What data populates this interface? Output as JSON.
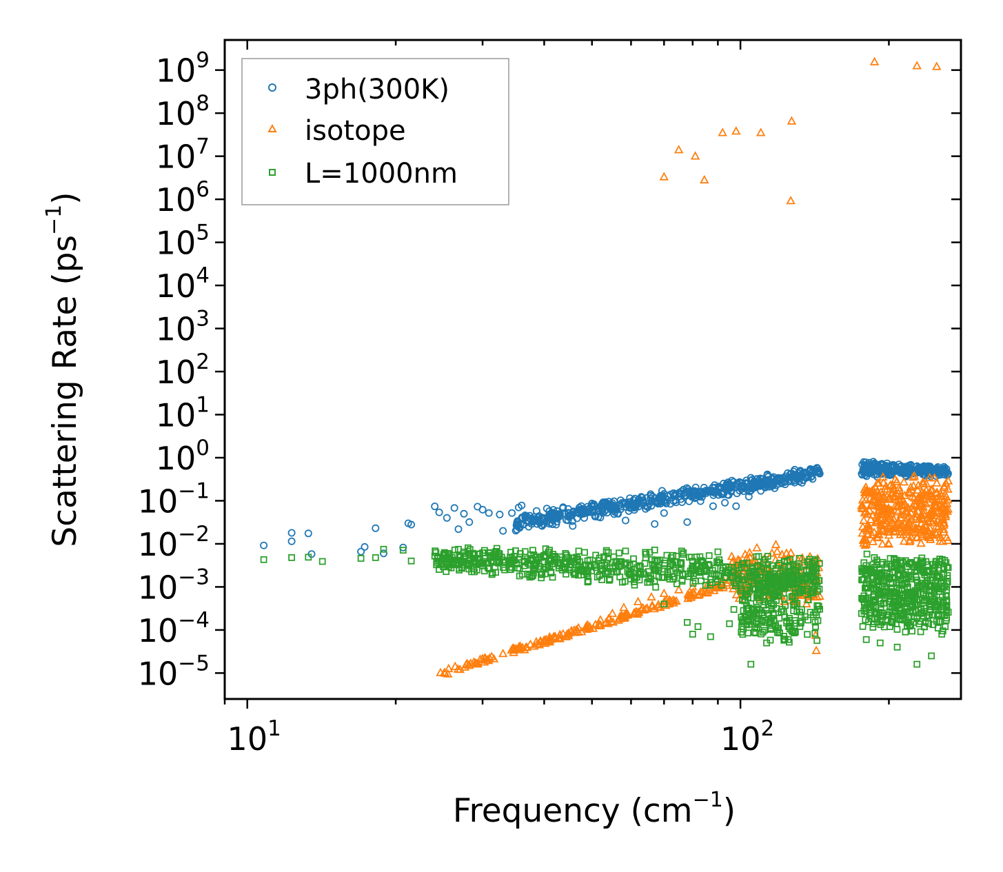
{
  "chart_data": {
    "type": "scatter",
    "xscale": "log",
    "yscale": "log",
    "xlabel": "Frequency (cm",
    "xlabel_sup": "−1",
    "xlabel_end": ")",
    "ylabel": "Scattering Rate (ps",
    "ylabel_sup": "−1",
    "ylabel_end": ")",
    "xlim": [
      9.0,
      280
    ],
    "ylim": [
      2.5e-06,
      5000000000
    ],
    "xticks": [
      {
        "base": "10",
        "exp": "1",
        "value": 10
      },
      {
        "base": "10",
        "exp": "2",
        "value": 100
      }
    ],
    "yticks": [
      {
        "base": "10",
        "exp": "9",
        "value": 1000000000.0
      },
      {
        "base": "10",
        "exp": "8",
        "value": 100000000.0
      },
      {
        "base": "10",
        "exp": "7",
        "value": 10000000.0
      },
      {
        "base": "10",
        "exp": "6",
        "value": 1000000.0
      },
      {
        "base": "10",
        "exp": "5",
        "value": 100000.0
      },
      {
        "base": "10",
        "exp": "4",
        "value": 10000.0
      },
      {
        "base": "10",
        "exp": "3",
        "value": 1000.0
      },
      {
        "base": "10",
        "exp": "2",
        "value": 100.0
      },
      {
        "base": "10",
        "exp": "1",
        "value": 10.0
      },
      {
        "base": "10",
        "exp": "0",
        "value": 1
      },
      {
        "base": "10",
        "exp": "−1",
        "value": 0.1
      },
      {
        "base": "10",
        "exp": "−2",
        "value": 0.01
      },
      {
        "base": "10",
        "exp": "−3",
        "value": 0.001
      },
      {
        "base": "10",
        "exp": "−4",
        "value": 0.0001
      },
      {
        "base": "10",
        "exp": "−5",
        "value": 1e-05
      }
    ],
    "legend_position": "top-left",
    "series": [
      {
        "name": "3ph(300K)",
        "marker": "circle",
        "color": "#1f77b4",
        "points": [
          [
            10.8,
            0.0092
          ],
          [
            12.3,
            0.0115
          ],
          [
            12.3,
            0.018
          ],
          [
            13.3,
            0.0175
          ],
          [
            13.5,
            0.0058
          ],
          [
            17.0,
            0.0066
          ],
          [
            17.3,
            0.0085
          ],
          [
            18.2,
            0.023
          ],
          [
            18.9,
            0.006
          ],
          [
            20.7,
            0.0082
          ],
          [
            21.2,
            0.03
          ],
          [
            21.5,
            0.028
          ],
          [
            24.0,
            0.074
          ],
          [
            24.5,
            0.054
          ],
          [
            25.4,
            0.04
          ],
          [
            26.3,
            0.068
          ],
          [
            26.8,
            0.022
          ],
          [
            27.5,
            0.05
          ],
          [
            28.2,
            0.032
          ],
          [
            29.3,
            0.073
          ],
          [
            30.0,
            0.062
          ],
          [
            30.9,
            0.052
          ],
          [
            32.5,
            0.048
          ],
          [
            33.0,
            0.02
          ],
          [
            34.4,
            0.052
          ],
          [
            35.5,
            0.07
          ],
          [
            36.0,
            0.078
          ],
          [
            36.6,
            0.046
          ],
          [
            37.2,
            0.025
          ],
          [
            38.6,
            0.058
          ],
          [
            39.0,
            0.032
          ],
          [
            40.5,
            0.066
          ],
          [
            41.6,
            0.048
          ],
          [
            42.3,
            0.028
          ],
          [
            43.7,
            0.071
          ],
          [
            44.8,
            0.043
          ],
          [
            45.7,
            0.026
          ],
          [
            47.5,
            0.062
          ],
          [
            49.0,
            0.073
          ],
          [
            50.5,
            0.055
          ],
          [
            52.0,
            0.041
          ],
          [
            54.5,
            0.063
          ],
          [
            56.5,
            0.05
          ],
          [
            58.5,
            0.035
          ],
          [
            61.0,
            0.074
          ],
          [
            64.0,
            0.077
          ],
          [
            67.0,
            0.029
          ],
          [
            70.0,
            0.052
          ],
          [
            74.0,
            0.092
          ],
          [
            78.0,
            0.032
          ],
          [
            83.0,
            0.098
          ],
          [
            88.0,
            0.075
          ],
          [
            93.0,
            0.09
          ],
          [
            98.0,
            0.075
          ],
          [
            104.0,
            0.125
          ],
          [
            110.0,
            0.17
          ],
          [
            116.0,
            0.26
          ],
          [
            122.0,
            0.34
          ],
          [
            128.0,
            0.38
          ],
          [
            135.0,
            0.44
          ],
          [
            142.0,
            0.52
          ],
          [
            178.0,
            0.52
          ],
          [
            182.0,
            0.68
          ],
          [
            187.0,
            0.74
          ],
          [
            192.0,
            0.7
          ],
          [
            198.0,
            0.6
          ],
          [
            205.0,
            0.48
          ],
          [
            212.0,
            0.5
          ],
          [
            220.0,
            0.44
          ],
          [
            228.0,
            0.45
          ],
          [
            236.0,
            0.52
          ],
          [
            244.0,
            0.54
          ],
          [
            252.0,
            0.5
          ],
          [
            260.0,
            0.46
          ]
        ]
      },
      {
        "name": "isotope",
        "marker": "triangle",
        "color": "#ff7f0e",
        "points": [
          [
            70.0,
            3300000
          ],
          [
            75.0,
            14000000
          ],
          [
            81.0,
            10000000
          ],
          [
            84.5,
            2800000
          ],
          [
            92.0,
            35000000
          ],
          [
            98.0,
            38000000
          ],
          [
            110.0,
            35000000
          ],
          [
            127.0,
            65000000
          ],
          [
            126.5,
            920000
          ],
          [
            187.0,
            1550000000
          ],
          [
            228.0,
            1250000000
          ],
          [
            250.0,
            1200000000
          ],
          [
            25.5,
            9.5e-06
          ],
          [
            27.0,
            1.2e-05
          ],
          [
            29.0,
            1.7e-05
          ],
          [
            31.0,
            2.2e-05
          ],
          [
            33.0,
            2.8e-05
          ],
          [
            35.0,
            3.6e-05
          ],
          [
            37.5,
            4.6e-05
          ],
          [
            40.0,
            5.8e-05
          ],
          [
            43.0,
            7.5e-05
          ],
          [
            46.0,
            9.8e-05
          ],
          [
            49.0,
            0.00013
          ],
          [
            52.0,
            0.00017
          ],
          [
            55.0,
            0.00024
          ],
          [
            58.0,
            0.00033
          ],
          [
            62.0,
            0.00045
          ],
          [
            66.0,
            0.00058
          ],
          [
            70.0,
            0.0007
          ],
          [
            75.0,
            0.00085
          ],
          [
            80.0,
            0.001
          ],
          [
            86.0,
            0.0012
          ],
          [
            92.0,
            0.0015
          ],
          [
            98.0,
            0.0022
          ],
          [
            104.0,
            0.0035
          ],
          [
            108.0,
            0.008
          ],
          [
            112.0,
            0.0045
          ],
          [
            118.0,
            0.0095
          ],
          [
            124.0,
            0.006
          ],
          [
            130.0,
            0.0028
          ],
          [
            136.0,
            0.0011
          ],
          [
            143.0,
            0.00058
          ],
          [
            142.0,
            7.5e-05
          ],
          [
            142.5,
            3.3e-05
          ],
          [
            180.0,
            0.0098
          ],
          [
            184.0,
            0.15
          ],
          [
            190.0,
            0.09
          ],
          [
            196.0,
            0.12
          ],
          [
            200.0,
            0.023
          ],
          [
            206.0,
            0.31
          ],
          [
            212.0,
            0.11
          ],
          [
            218.0,
            0.04
          ],
          [
            224.0,
            0.35
          ],
          [
            230.0,
            0.12
          ],
          [
            236.0,
            0.021
          ],
          [
            242.0,
            0.34
          ],
          [
            248.0,
            0.08
          ],
          [
            254.0,
            0.03
          ],
          [
            262.0,
            0.014
          ]
        ]
      },
      {
        "name": "L=1000nm",
        "marker": "square",
        "color": "#2ca02c",
        "points": [
          [
            10.8,
            0.0043
          ],
          [
            12.3,
            0.0048
          ],
          [
            13.3,
            0.0049
          ],
          [
            14.2,
            0.0039
          ],
          [
            17.0,
            0.0046
          ],
          [
            18.2,
            0.0048
          ],
          [
            18.9,
            0.0075
          ],
          [
            20.7,
            0.0071
          ],
          [
            21.5,
            0.004
          ],
          [
            24.0,
            0.0052
          ],
          [
            25.4,
            0.0045
          ],
          [
            26.8,
            0.0075
          ],
          [
            28.2,
            0.004
          ],
          [
            30.0,
            0.0062
          ],
          [
            31.5,
            0.0037
          ],
          [
            33.0,
            0.0042
          ],
          [
            35.0,
            0.0069
          ],
          [
            37.0,
            0.0045
          ],
          [
            39.0,
            0.0035
          ],
          [
            41.0,
            0.0071
          ],
          [
            43.0,
            0.0042
          ],
          [
            45.0,
            0.0025
          ],
          [
            47.0,
            0.0068
          ],
          [
            49.0,
            0.0013
          ],
          [
            51.0,
            0.0028
          ],
          [
            53.5,
            0.007
          ],
          [
            56.0,
            0.0022
          ],
          [
            58.5,
            0.0068
          ],
          [
            61.0,
            0.0011
          ],
          [
            64.0,
            0.0035
          ],
          [
            67.0,
            0.0072
          ],
          [
            70.0,
            0.0004
          ],
          [
            73.0,
            0.0015
          ],
          [
            76.0,
            0.0068
          ],
          [
            78.0,
            0.00015
          ],
          [
            80.0,
            8e-05
          ],
          [
            82.0,
            0.00012
          ],
          [
            84.0,
            0.0038
          ],
          [
            87.0,
            7e-05
          ],
          [
            90.0,
            0.0065
          ],
          [
            92.0,
            0.0024
          ],
          [
            95.0,
            0.00014
          ],
          [
            97.0,
            0.0003
          ],
          [
            100.0,
            0.0008
          ],
          [
            103.0,
            0.0036
          ],
          [
            105.0,
            1.6e-05
          ],
          [
            107.0,
            0.00012
          ],
          [
            110.0,
            0.0022
          ],
          [
            113.0,
            5e-05
          ],
          [
            116.0,
            0.0031
          ],
          [
            119.0,
            9e-05
          ],
          [
            122.0,
            0.0025
          ],
          [
            125.0,
            6e-05
          ],
          [
            128.0,
            0.0031
          ],
          [
            132.0,
            0.00012
          ],
          [
            136.0,
            0.0025
          ],
          [
            140.0,
            0.0036
          ],
          [
            142.0,
            0.00012
          ],
          [
            143.0,
            5.7e-05
          ],
          [
            178.0,
            0.0015
          ],
          [
            180.0,
            6e-05
          ],
          [
            183.0,
            0.0024
          ],
          [
            186.0,
            0.00014
          ],
          [
            189.0,
            0.0033
          ],
          [
            192.0,
            5e-05
          ],
          [
            195.0,
            0.00042
          ],
          [
            198.0,
            0.0028
          ],
          [
            201.0,
            0.00012
          ],
          [
            205.0,
            0.0031
          ],
          [
            208.0,
            4e-05
          ],
          [
            212.0,
            0.0026
          ],
          [
            216.0,
            9e-05
          ],
          [
            220.0,
            0.0034
          ],
          [
            224.0,
            0.00015
          ],
          [
            228.0,
            1.6e-05
          ],
          [
            232.0,
            0.0037
          ],
          [
            236.0,
            0.00012
          ],
          [
            240.0,
            0.0023
          ],
          [
            244.0,
            2.5e-05
          ],
          [
            248.0,
            0.00035
          ],
          [
            252.0,
            0.0018
          ],
          [
            256.0,
            8e-05
          ],
          [
            262.0,
            0.0012
          ]
        ]
      }
    ],
    "dense_bands": [
      {
        "series": "3ph(300K)",
        "x_range": [
          35,
          145
        ],
        "y_start": [
          0.024,
          0.04
        ],
        "y_end": [
          0.35,
          0.55
        ],
        "count": 560,
        "jitter": 0.18
      },
      {
        "series": "3ph(300K)",
        "x_range": [
          176,
          264
        ],
        "y_start": [
          0.4,
          0.75
        ],
        "y_end": [
          0.42,
          0.55
        ],
        "count": 260,
        "jitter": 0.12
      },
      {
        "series": "isotope",
        "x_range": [
          24.5,
          95
        ],
        "y_start": [
          9.5e-06,
          9.5e-06
        ],
        "y_end": [
          0.0012,
          0.0012
        ],
        "count": 170,
        "jitter": 0.12
      },
      {
        "series": "isotope",
        "x_range": [
          95,
          145
        ],
        "y_start": [
          0.0008,
          0.004
        ],
        "y_end": [
          0.0005,
          0.005
        ],
        "count": 180,
        "jitter": 0.45
      },
      {
        "series": "isotope",
        "x_range": [
          176,
          264
        ],
        "y_start": [
          0.012,
          0.25
        ],
        "y_end": [
          0.015,
          0.25
        ],
        "count": 360,
        "jitter": 0.45
      },
      {
        "series": "L=1000nm",
        "x_range": [
          24,
          145
        ],
        "y_start": [
          0.0028,
          0.0065
        ],
        "y_end": [
          0.0008,
          0.004
        ],
        "count": 620,
        "jitter": 0.3
      },
      {
        "series": "L=1000nm",
        "x_range": [
          100,
          145
        ],
        "y_start": [
          8e-05,
          0.002
        ],
        "y_end": [
          8e-05,
          0.002
        ],
        "count": 230,
        "jitter": 0.5
      },
      {
        "series": "L=1000nm",
        "x_range": [
          176,
          264
        ],
        "y_start": [
          0.00015,
          0.0035
        ],
        "y_end": [
          0.00015,
          0.0035
        ],
        "count": 480,
        "jitter": 0.5
      }
    ]
  }
}
